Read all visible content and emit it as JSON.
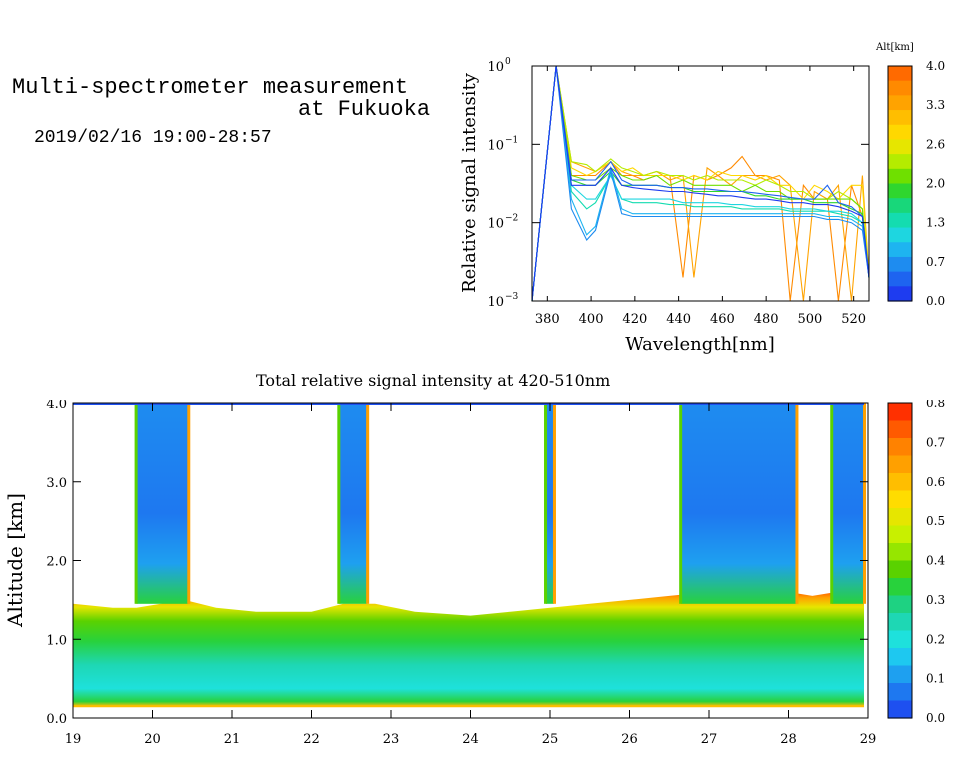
{
  "header": {
    "title_line1": "Multi-spectrometer measurement",
    "title_line2": "at Fukuoka",
    "datetime": "2019/02/16 19:00-28:57"
  },
  "chart_data": [
    {
      "type": "line",
      "xlabel": "Wavelength[nm]",
      "ylabel": "Relative signal intensity",
      "xlim": [
        373,
        527
      ],
      "ylim": [
        0.001,
        1
      ],
      "yscale": "log",
      "x_ticks": [
        "380",
        "400",
        "420",
        "440",
        "460",
        "480",
        "500",
        "520"
      ],
      "y_ticks": [
        {
          "base": "10",
          "exp": "0"
        },
        {
          "base": "10",
          "exp": "−1"
        },
        {
          "base": "10",
          "exp": "−2"
        },
        {
          "base": "10",
          "exp": "−3"
        }
      ],
      "legend_title": "Alt[km]",
      "colorbar_ticks": [
        "4.0",
        "3.3",
        "2.6",
        "2.0",
        "1.3",
        "0.7",
        "0.0"
      ],
      "colorbar_colors": [
        "#ff6a00",
        "#ff8a00",
        "#ffa300",
        "#ffbe00",
        "#ffd800",
        "#e6e600",
        "#b4ec00",
        "#6fe000",
        "#2fd62f",
        "#18d77a",
        "#14dcb0",
        "#1ed6e0",
        "#1eb4f0",
        "#1e8cf0",
        "#1e64f0",
        "#1e3cf0"
      ],
      "x": [
        373,
        384,
        391,
        398,
        402,
        409,
        414,
        419,
        424,
        430,
        436,
        442,
        447,
        453,
        458,
        464,
        469,
        475,
        480,
        486,
        491,
        497,
        502,
        508,
        513,
        519,
        524,
        527
      ],
      "series": [
        {
          "color": "#ff8a00",
          "values": [
            0.001,
            1.0,
            0.04,
            0.04,
            0.04,
            0.06,
            0.04,
            0.04,
            0.035,
            0.04,
            0.04,
            0.002,
            0.04,
            0.035,
            0.04,
            0.05,
            0.07,
            0.04,
            0.04,
            0.035,
            0.001,
            0.03,
            0.02,
            0.02,
            0.001,
            0.03,
            0.012,
            0.002
          ]
        },
        {
          "color": "#ffa300",
          "values": [
            0.001,
            1.0,
            0.06,
            0.05,
            0.045,
            0.06,
            0.045,
            0.04,
            0.04,
            0.045,
            0.035,
            0.04,
            0.002,
            0.05,
            0.04,
            0.03,
            0.04,
            0.04,
            0.035,
            0.04,
            0.03,
            0.001,
            0.025,
            0.02,
            0.03,
            0.001,
            0.04,
            0.002
          ]
        },
        {
          "color": "#ffd800",
          "values": [
            0.001,
            1.0,
            0.05,
            0.04,
            0.045,
            0.06,
            0.045,
            0.05,
            0.04,
            0.04,
            0.04,
            0.035,
            0.04,
            0.035,
            0.045,
            0.04,
            0.04,
            0.035,
            0.04,
            0.03,
            0.03,
            0.02,
            0.03,
            0.025,
            0.02,
            0.03,
            0.03,
            0.002
          ]
        },
        {
          "color": "#b4ec00",
          "values": [
            0.001,
            1.0,
            0.06,
            0.055,
            0.045,
            0.065,
            0.05,
            0.045,
            0.04,
            0.045,
            0.04,
            0.04,
            0.035,
            0.04,
            0.035,
            0.035,
            0.035,
            0.03,
            0.035,
            0.03,
            0.025,
            0.025,
            0.02,
            0.02,
            0.025,
            0.02,
            0.015,
            0.002
          ]
        },
        {
          "color": "#6fe000",
          "values": [
            0.001,
            1.0,
            0.04,
            0.035,
            0.035,
            0.05,
            0.04,
            0.035,
            0.035,
            0.04,
            0.03,
            0.035,
            0.03,
            0.03,
            0.03,
            0.03,
            0.025,
            0.03,
            0.025,
            0.025,
            0.02,
            0.02,
            0.02,
            0.02,
            0.02,
            0.02,
            0.015,
            0.002
          ]
        },
        {
          "color": "#2fd62f",
          "values": [
            0.001,
            1.0,
            0.035,
            0.03,
            0.03,
            0.045,
            0.03,
            0.03,
            0.03,
            0.03,
            0.028,
            0.028,
            0.025,
            0.025,
            0.025,
            0.025,
            0.025,
            0.022,
            0.022,
            0.02,
            0.02,
            0.02,
            0.018,
            0.018,
            0.018,
            0.015,
            0.013,
            0.002
          ]
        },
        {
          "color": "#14dcb0",
          "values": [
            0.001,
            1.0,
            0.025,
            0.015,
            0.018,
            0.04,
            0.02,
            0.018,
            0.018,
            0.018,
            0.017,
            0.017,
            0.016,
            0.016,
            0.016,
            0.016,
            0.015,
            0.015,
            0.015,
            0.015,
            0.014,
            0.014,
            0.014,
            0.014,
            0.013,
            0.012,
            0.01,
            0.002
          ]
        },
        {
          "color": "#1ed6e0",
          "values": [
            0.001,
            1.0,
            0.03,
            0.02,
            0.02,
            0.04,
            0.02,
            0.02,
            0.02,
            0.02,
            0.02,
            0.018,
            0.018,
            0.018,
            0.018,
            0.017,
            0.017,
            0.016,
            0.016,
            0.016,
            0.015,
            0.015,
            0.015,
            0.014,
            0.014,
            0.013,
            0.01,
            0.002
          ]
        },
        {
          "color": "#1eb4f0",
          "values": [
            0.001,
            1.0,
            0.02,
            0.007,
            0.009,
            0.05,
            0.015,
            0.013,
            0.013,
            0.013,
            0.013,
            0.013,
            0.013,
            0.013,
            0.013,
            0.013,
            0.013,
            0.013,
            0.013,
            0.013,
            0.013,
            0.013,
            0.013,
            0.012,
            0.012,
            0.011,
            0.009,
            0.002
          ]
        },
        {
          "color": "#1e8cf0",
          "values": [
            0.001,
            1.0,
            0.015,
            0.006,
            0.008,
            0.045,
            0.013,
            0.012,
            0.012,
            0.012,
            0.012,
            0.012,
            0.012,
            0.012,
            0.012,
            0.012,
            0.012,
            0.012,
            0.012,
            0.012,
            0.012,
            0.012,
            0.012,
            0.011,
            0.011,
            0.01,
            0.008,
            0.002
          ]
        },
        {
          "color": "#1e64f0",
          "values": [
            0.001,
            1.0,
            0.035,
            0.035,
            0.035,
            0.06,
            0.035,
            0.03,
            0.03,
            0.03,
            0.028,
            0.028,
            0.027,
            0.027,
            0.026,
            0.025,
            0.025,
            0.024,
            0.023,
            0.022,
            0.021,
            0.02,
            0.02,
            0.03,
            0.018,
            0.016,
            0.012,
            0.002
          ]
        },
        {
          "color": "#1e3cf0",
          "values": [
            0.001,
            1.0,
            0.03,
            0.03,
            0.03,
            0.05,
            0.03,
            0.028,
            0.027,
            0.026,
            0.025,
            0.025,
            0.024,
            0.023,
            0.022,
            0.022,
            0.021,
            0.02,
            0.02,
            0.019,
            0.018,
            0.018,
            0.017,
            0.017,
            0.016,
            0.014,
            0.012,
            0.002
          ]
        }
      ]
    },
    {
      "type": "heatmap",
      "title": "Total relative signal intensity at 420-510nm",
      "xlabel": "",
      "ylabel": "Altitude [km]",
      "xlim": [
        19,
        29
      ],
      "ylim": [
        0,
        4.0
      ],
      "x_ticks": [
        "19",
        "20",
        "21",
        "22",
        "23",
        "24",
        "25",
        "26",
        "27",
        "28",
        "29"
      ],
      "y_ticks": [
        "0.0",
        "1.0",
        "2.0",
        "3.0",
        "4.0"
      ],
      "colorbar_ticks": [
        "0.8",
        "0.7",
        "0.6",
        "0.5",
        "0.4",
        "0.3",
        "0.2",
        "0.1",
        "0.0"
      ],
      "colorbar_colors": [
        "#ff3000",
        "#ff5a00",
        "#ff8200",
        "#ffa000",
        "#ffbe00",
        "#ffdc00",
        "#e6e600",
        "#c8f000",
        "#96e600",
        "#5ad200",
        "#28d23c",
        "#1ed282",
        "#1ed7b4",
        "#1ee1dc",
        "#1ec8f0",
        "#1ea0f0",
        "#1e78f0",
        "#1e50f0"
      ],
      "data_time_end": 28.95,
      "boundary_layer_top_km": [
        [
          19.0,
          1.45
        ],
        [
          19.5,
          1.4
        ],
        [
          19.8,
          1.4
        ],
        [
          20.4,
          1.5
        ],
        [
          20.8,
          1.4
        ],
        [
          21.3,
          1.35
        ],
        [
          22.0,
          1.35
        ],
        [
          22.4,
          1.45
        ],
        [
          22.8,
          1.45
        ],
        [
          23.3,
          1.35
        ],
        [
          24.0,
          1.3
        ],
        [
          24.5,
          1.35
        ],
        [
          25.0,
          1.4
        ],
        [
          25.5,
          1.45
        ],
        [
          26.0,
          1.5
        ],
        [
          26.5,
          1.55
        ],
        [
          27.0,
          1.6
        ],
        [
          27.5,
          1.65
        ],
        [
          28.0,
          1.6
        ],
        [
          28.3,
          1.55
        ],
        [
          28.6,
          1.6
        ],
        [
          28.95,
          1.65
        ]
      ],
      "cloud_free_columns_km": [
        [
          19.8,
          20.45
        ],
        [
          22.35,
          22.7
        ],
        [
          24.95,
          25.05
        ],
        [
          26.65,
          28.1
        ],
        [
          28.55,
          28.95
        ]
      ]
    }
  ]
}
